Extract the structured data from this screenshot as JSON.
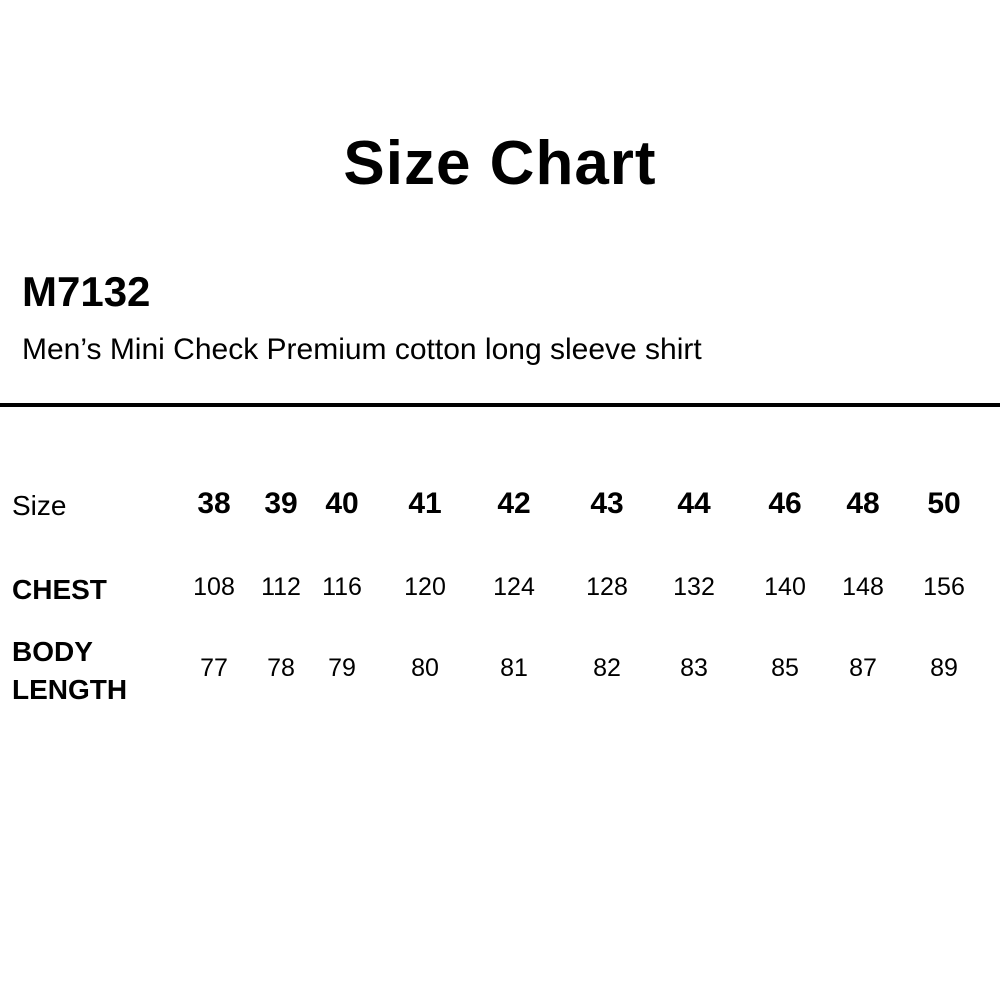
{
  "title": "Size Chart",
  "product": {
    "code": "M7132",
    "description": "Men’s Mini Check Premium cotton long sleeve shirt"
  },
  "table": {
    "size_label": "Size",
    "chest_label": "CHEST",
    "body_length_label_line1": "BODY",
    "body_length_label_line2": "LENGTH",
    "sizes": [
      "38",
      "39",
      "40",
      "41",
      "42",
      "43",
      "44",
      "46",
      "48",
      "50"
    ],
    "chest": [
      "108",
      "112",
      "116",
      "120",
      "124",
      "128",
      "132",
      "140",
      "148",
      "156"
    ],
    "body_length": [
      "77",
      "78",
      "79",
      "80",
      "81",
      "82",
      "83",
      "85",
      "87",
      "89"
    ]
  }
}
